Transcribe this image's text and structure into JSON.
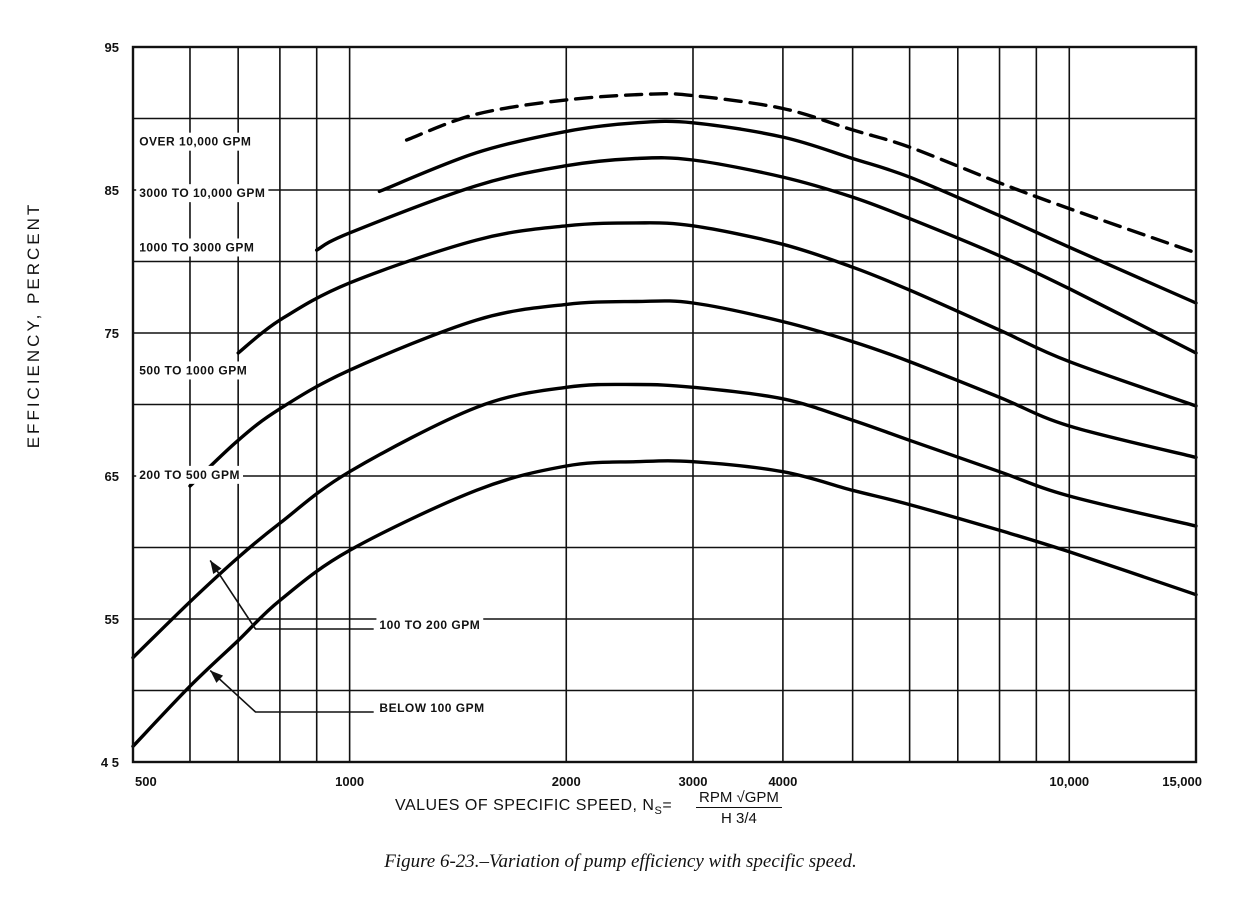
{
  "chart_data": {
    "type": "line",
    "x_scale": "log",
    "xlim": [
      500,
      15000
    ],
    "ylim": [
      45,
      95
    ],
    "grid": true,
    "ylabel": "EFFICIENCY, PERCENT",
    "xlabel": "VALUES OF SPECIFIC SPEED, N",
    "xlabel_subscript": "S",
    "formula_numerator": "RPM √GPM",
    "formula_denominator": "H 3/4",
    "caption": "Figure 6-23.–Variation of pump efficiency with specific speed.",
    "x_ticks": [
      {
        "value": 500,
        "label": "500"
      },
      {
        "value": 1000,
        "label": "1000"
      },
      {
        "value": 2000,
        "label": "2000"
      },
      {
        "value": 3000,
        "label": "3000"
      },
      {
        "value": 4000,
        "label": "4000"
      },
      {
        "value": 10000,
        "label": "10,000"
      },
      {
        "value": 15000,
        "label": "15,000"
      }
    ],
    "y_ticks": [
      {
        "value": 95,
        "label": "95"
      },
      {
        "value": 85,
        "label": "85"
      },
      {
        "value": 75,
        "label": "75"
      },
      {
        "value": 65,
        "label": "65"
      },
      {
        "value": 55,
        "label": "55"
      },
      {
        "value": 45,
        "label": "4 5"
      }
    ],
    "series": [
      {
        "name": "",
        "dashed": true,
        "points": [
          [
            1200,
            88.5
          ],
          [
            1500,
            90.3
          ],
          [
            2000,
            91.3
          ],
          [
            2600,
            91.7
          ],
          [
            3000,
            91.6
          ],
          [
            4000,
            90.7
          ],
          [
            5000,
            89.2
          ],
          [
            6000,
            88.0
          ],
          [
            8000,
            85.5
          ],
          [
            10000,
            83.7
          ],
          [
            15000,
            80.6
          ]
        ]
      },
      {
        "name": "OVER 10,000 GPM",
        "points": [
          [
            1100,
            84.9
          ],
          [
            1500,
            87.6
          ],
          [
            2000,
            89.1
          ],
          [
            2500,
            89.7
          ],
          [
            3000,
            89.7
          ],
          [
            4000,
            88.7
          ],
          [
            5000,
            87.2
          ],
          [
            6000,
            85.9
          ],
          [
            8000,
            83.2
          ],
          [
            10000,
            81.0
          ],
          [
            15000,
            77.1
          ]
        ]
      },
      {
        "name": "3000 TO 10,000 GPM",
        "points": [
          [
            900,
            80.8
          ],
          [
            1000,
            82.0
          ],
          [
            1500,
            85.3
          ],
          [
            2000,
            86.7
          ],
          [
            2500,
            87.2
          ],
          [
            3000,
            87.1
          ],
          [
            4000,
            85.9
          ],
          [
            5000,
            84.5
          ],
          [
            6000,
            83.0
          ],
          [
            8000,
            80.4
          ],
          [
            10000,
            78.1
          ],
          [
            15000,
            73.6
          ]
        ]
      },
      {
        "name": "1000 TO 3000 GPM",
        "points": [
          [
            700,
            73.6
          ],
          [
            800,
            75.9
          ],
          [
            1000,
            78.5
          ],
          [
            1500,
            81.5
          ],
          [
            2000,
            82.5
          ],
          [
            2500,
            82.7
          ],
          [
            3000,
            82.5
          ],
          [
            4000,
            81.2
          ],
          [
            5000,
            79.6
          ],
          [
            6000,
            78.0
          ],
          [
            8000,
            75.2
          ],
          [
            10000,
            73.0
          ],
          [
            15000,
            69.9
          ]
        ]
      },
      {
        "name": "500 TO 1000 GPM",
        "points": [
          [
            600,
            64.3
          ],
          [
            700,
            67.5
          ],
          [
            800,
            69.7
          ],
          [
            1000,
            72.4
          ],
          [
            1500,
            75.9
          ],
          [
            2000,
            77.0
          ],
          [
            2500,
            77.2
          ],
          [
            3000,
            77.1
          ],
          [
            4000,
            75.8
          ],
          [
            5000,
            74.4
          ],
          [
            6000,
            73.0
          ],
          [
            8000,
            70.5
          ],
          [
            10000,
            68.5
          ],
          [
            15000,
            66.3
          ]
        ]
      },
      {
        "name": "200 TO 500 GPM",
        "points": [
          [
            500,
            52.3
          ],
          [
            600,
            56.2
          ],
          [
            700,
            59.3
          ],
          [
            800,
            61.7
          ],
          [
            1000,
            65.3
          ],
          [
            1500,
            69.8
          ],
          [
            2000,
            71.2
          ],
          [
            2500,
            71.4
          ],
          [
            3000,
            71.2
          ],
          [
            4000,
            70.4
          ],
          [
            5000,
            68.9
          ],
          [
            6000,
            67.5
          ],
          [
            8000,
            65.3
          ],
          [
            10000,
            63.6
          ],
          [
            15000,
            61.5
          ]
        ]
      },
      {
        "name": "100 TO 200 GPM",
        "points": [
          [
            500,
            46.1
          ],
          [
            600,
            50.3
          ],
          [
            700,
            53.5
          ],
          [
            800,
            56.3
          ],
          [
            1000,
            59.8
          ],
          [
            1500,
            64.0
          ],
          [
            2000,
            65.7
          ],
          [
            2500,
            66.0
          ],
          [
            3000,
            66.0
          ],
          [
            4000,
            65.3
          ],
          [
            5000,
            64.0
          ],
          [
            6000,
            63.0
          ],
          [
            8000,
            61.2
          ],
          [
            10000,
            59.7
          ],
          [
            15000,
            56.7
          ]
        ]
      }
    ],
    "labels": [
      {
        "text": "OVER 10,000 GPM",
        "x": 510,
        "y": 88.1
      },
      {
        "text": "3000 TO 10,000 GPM",
        "x": 510,
        "y": 84.5
      },
      {
        "text": "1000 TO 3000 GPM",
        "x": 510,
        "y": 80.7
      },
      {
        "text": "500 TO 1000 GPM",
        "x": 510,
        "y": 72.1
      },
      {
        "text": "200 TO 500 GPM",
        "x": 510,
        "y": 64.8
      },
      {
        "text": "100 TO 200 GPM",
        "x": 1100,
        "y": 54.3
      },
      {
        "text": "BELOW 100 GPM",
        "x": 1100,
        "y": 48.5
      }
    ]
  }
}
